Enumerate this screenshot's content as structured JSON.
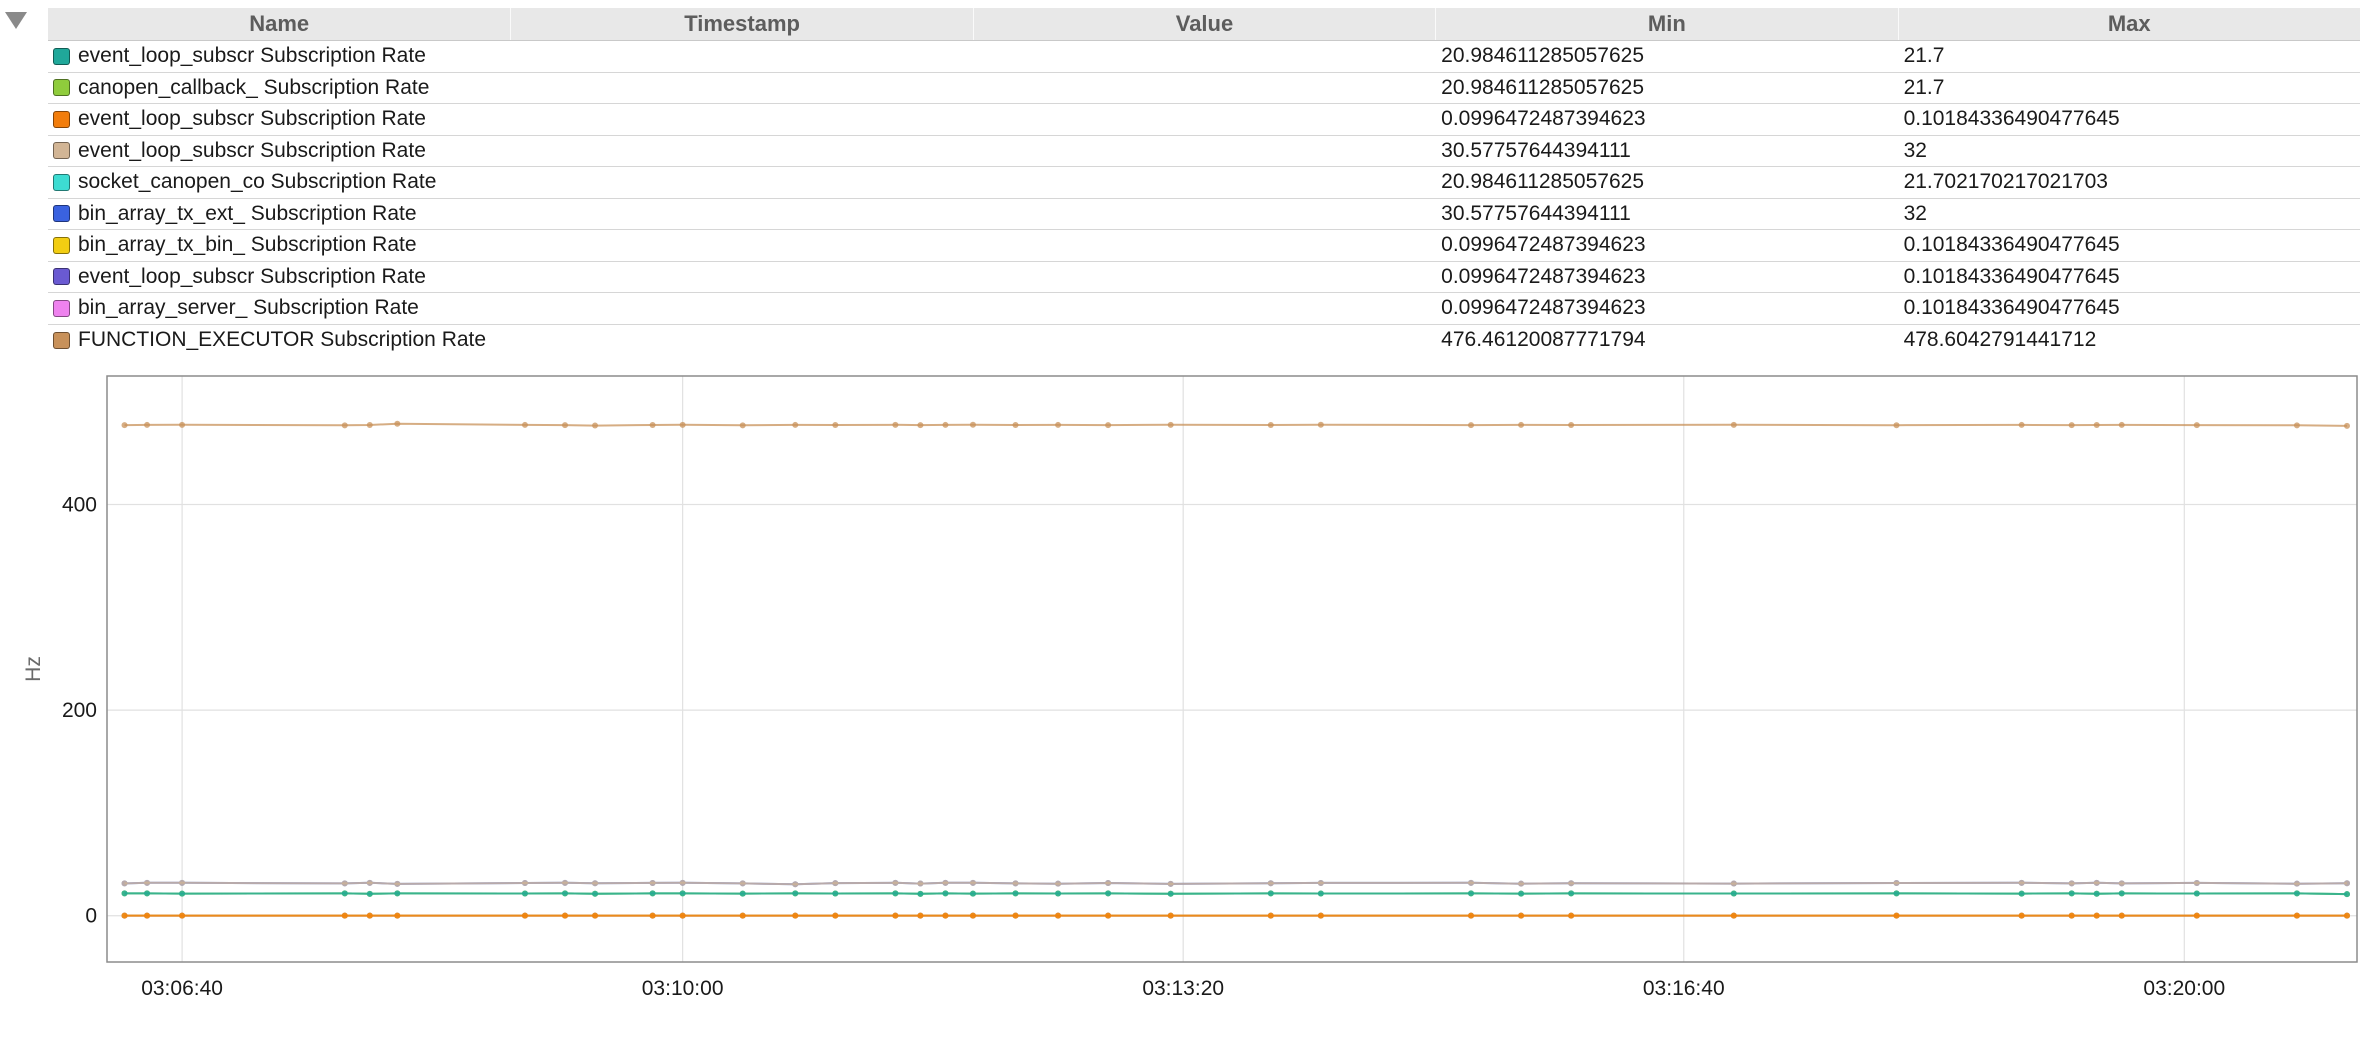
{
  "table": {
    "columns": [
      "Name",
      "Timestamp",
      "Value",
      "Min",
      "Max"
    ],
    "rows": [
      {
        "name": "event_loop_subscr Subscription Rate",
        "color": "#20a89a",
        "timestamp": "",
        "value": "",
        "min": "20.984611285057625",
        "max": "21.7"
      },
      {
        "name": "canopen_callback_ Subscription Rate",
        "color": "#8fcc3c",
        "timestamp": "",
        "value": "",
        "min": "20.984611285057625",
        "max": "21.7"
      },
      {
        "name": "event_loop_subscr Subscription Rate",
        "color": "#f27d0c",
        "timestamp": "",
        "value": "",
        "min": "0.0996472487394623",
        "max": "0.10184336490477645"
      },
      {
        "name": "event_loop_subscr Subscription Rate",
        "color": "#d2b595",
        "timestamp": "",
        "value": "",
        "min": "30.57757644394111",
        "max": "32"
      },
      {
        "name": "socket_canopen_co Subscription Rate",
        "color": "#3ddcd2",
        "timestamp": "",
        "value": "",
        "min": "20.984611285057625",
        "max": "21.702170217021703"
      },
      {
        "name": "bin_array_tx_ext_ Subscription Rate",
        "color": "#3a62e0",
        "timestamp": "",
        "value": "",
        "min": "30.57757644394111",
        "max": "32"
      },
      {
        "name": "bin_array_tx_bin_ Subscription Rate",
        "color": "#f2cd12",
        "timestamp": "",
        "value": "",
        "min": "0.0996472487394623",
        "max": "0.10184336490477645"
      },
      {
        "name": "event_loop_subscr Subscription Rate",
        "color": "#6a5ad2",
        "timestamp": "",
        "value": "",
        "min": "0.0996472487394623",
        "max": "0.10184336490477645"
      },
      {
        "name": "bin_array_server_ Subscription Rate",
        "color": "#ee82ee",
        "timestamp": "",
        "value": "",
        "min": "0.0996472487394623",
        "max": "0.10184336490477645"
      },
      {
        "name": "FUNCTION_EXECUTOR Subscription Rate",
        "color": "#c8915a",
        "timestamp": "",
        "value": "",
        "min": "476.46120087771794",
        "max": "478.6042791441712"
      }
    ]
  },
  "chart_data": {
    "type": "line",
    "ylabel": "Hz",
    "xlabel": "",
    "ylim": [
      -45,
      525
    ],
    "yticks": [
      0,
      200,
      400
    ],
    "xlim": [
      "03:06:10",
      "03:21:09"
    ],
    "xticks": [
      "03:06:40",
      "03:10:00",
      "03:13:20",
      "03:16:40",
      "03:20:00"
    ],
    "grid": true,
    "x": [
      "03:06:17",
      "03:06:26",
      "03:06:40",
      "03:07:45",
      "03:07:55",
      "03:08:06",
      "03:08:57",
      "03:09:13",
      "03:09:25",
      "03:09:48",
      "03:10:00",
      "03:10:24",
      "03:10:45",
      "03:11:01",
      "03:11:25",
      "03:11:35",
      "03:11:45",
      "03:11:56",
      "03:12:13",
      "03:12:30",
      "03:12:50",
      "03:13:15",
      "03:13:55",
      "03:14:15",
      "03:15:15",
      "03:15:35",
      "03:15:55",
      "03:17:00",
      "03:18:05",
      "03:18:55",
      "03:19:15",
      "03:19:25",
      "03:19:35",
      "03:20:05",
      "03:20:45",
      "03:21:05"
    ],
    "series": [
      {
        "name": "event_loop_subscr Subscription Rate",
        "color": "#20a89a",
        "values": [
          21.7,
          21.7,
          21.5,
          21.7,
          21.3,
          21.7,
          21.6,
          21.7,
          21.4,
          21.7,
          21.7,
          21.5,
          21.7,
          21.6,
          21.7,
          21.3,
          21.7,
          21.5,
          21.7,
          21.6,
          21.7,
          21.4,
          21.7,
          21.6,
          21.7,
          21.5,
          21.7,
          21.6,
          21.7,
          21.5,
          21.7,
          21.4,
          21.7,
          21.6,
          21.7,
          21.0
        ]
      },
      {
        "name": "canopen_callback_ Subscription Rate",
        "color": "#8fcc3c",
        "values": [
          21.7,
          21.7,
          21.5,
          21.7,
          21.3,
          21.7,
          21.6,
          21.7,
          21.4,
          21.7,
          21.7,
          21.5,
          21.7,
          21.6,
          21.7,
          21.3,
          21.7,
          21.5,
          21.7,
          21.6,
          21.7,
          21.4,
          21.7,
          21.6,
          21.7,
          21.5,
          21.7,
          21.6,
          21.7,
          21.5,
          21.7,
          21.4,
          21.7,
          21.6,
          21.7,
          21.0
        ]
      },
      {
        "name": "event_loop_subscr Subscription Rate",
        "color": "#f27d0c",
        "values": [
          0.1,
          0.1,
          0.1,
          0.1,
          0.1,
          0.1,
          0.1,
          0.1,
          0.1,
          0.1,
          0.1,
          0.1,
          0.1,
          0.1,
          0.1,
          0.1,
          0.1,
          0.1,
          0.1,
          0.1,
          0.1,
          0.1,
          0.1,
          0.1,
          0.1,
          0.1,
          0.1,
          0.1,
          0.1,
          0.1,
          0.1,
          0.1,
          0.1,
          0.1,
          0.1,
          0.1
        ]
      },
      {
        "name": "event_loop_subscr Subscription Rate",
        "color": "#d2b595",
        "values": [
          31.5,
          32,
          32,
          31.5,
          32,
          31,
          31.8,
          32,
          31.6,
          31.9,
          32,
          31.5,
          30.6,
          31.7,
          32,
          31.3,
          32,
          32,
          31.5,
          31.2,
          31.8,
          31,
          31.6,
          31.9,
          32,
          31.2,
          31.6,
          31.3,
          31.8,
          32,
          31.5,
          32,
          31.5,
          31.9,
          31.2,
          31.6
        ]
      },
      {
        "name": "socket_canopen_co Subscription Rate",
        "color": "#3ddcd2",
        "values": [
          21.7,
          21.7,
          21.5,
          21.7,
          21.3,
          21.7,
          21.6,
          21.7,
          21.4,
          21.7,
          21.7,
          21.5,
          21.7,
          21.6,
          21.7,
          21.3,
          21.7,
          21.5,
          21.7,
          21.6,
          21.7,
          21.4,
          21.7,
          21.6,
          21.7,
          21.5,
          21.7,
          21.6,
          21.7,
          21.5,
          21.7,
          21.4,
          21.7,
          21.6,
          21.7,
          21.0
        ]
      },
      {
        "name": "bin_array_tx_ext_ Subscription Rate",
        "color": "#3a62e0",
        "values": [
          31.5,
          32,
          32,
          31.5,
          32,
          31,
          31.8,
          32,
          31.6,
          31.9,
          32,
          31.5,
          30.6,
          31.7,
          32,
          31.3,
          32,
          32,
          31.5,
          31.2,
          31.8,
          31,
          31.6,
          31.9,
          32,
          31.2,
          31.6,
          31.3,
          31.8,
          32,
          31.5,
          32,
          31.5,
          31.9,
          31.2,
          31.6
        ]
      },
      {
        "name": "bin_array_tx_bin_ Subscription Rate",
        "color": "#f2cd12",
        "values": [
          0.1,
          0.1,
          0.1,
          0.1,
          0.1,
          0.1,
          0.1,
          0.1,
          0.1,
          0.1,
          0.1,
          0.1,
          0.1,
          0.1,
          0.1,
          0.1,
          0.1,
          0.1,
          0.1,
          0.1,
          0.1,
          0.1,
          0.1,
          0.1,
          0.1,
          0.1,
          0.1,
          0.1,
          0.1,
          0.1,
          0.1,
          0.1,
          0.1,
          0.1,
          0.1,
          0.1
        ]
      },
      {
        "name": "event_loop_subscr Subscription Rate",
        "color": "#6a5ad2",
        "values": [
          0.1,
          0.1,
          0.1,
          0.1,
          0.1,
          0.1,
          0.1,
          0.1,
          0.1,
          0.1,
          0.1,
          0.1,
          0.1,
          0.1,
          0.1,
          0.1,
          0.1,
          0.1,
          0.1,
          0.1,
          0.1,
          0.1,
          0.1,
          0.1,
          0.1,
          0.1,
          0.1,
          0.1,
          0.1,
          0.1,
          0.1,
          0.1,
          0.1,
          0.1,
          0.1,
          0.1
        ]
      },
      {
        "name": "bin_array_server_ Subscription Rate",
        "color": "#ee82ee",
        "values": [
          0.1,
          0.1,
          0.1,
          0.1,
          0.1,
          0.1,
          0.1,
          0.1,
          0.1,
          0.1,
          0.1,
          0.1,
          0.1,
          0.1,
          0.1,
          0.1,
          0.1,
          0.1,
          0.1,
          0.1,
          0.1,
          0.1,
          0.1,
          0.1,
          0.1,
          0.1,
          0.1,
          0.1,
          0.1,
          0.1,
          0.1,
          0.1,
          0.1,
          0.1,
          0.1,
          0.1
        ]
      },
      {
        "name": "FUNCTION_EXECUTOR Subscription Rate",
        "color": "#c8915a",
        "values": [
          477.2,
          477.4,
          477.5,
          477.0,
          477.3,
          478.6,
          477.4,
          477.2,
          476.8,
          477.3,
          477.5,
          477.0,
          477.4,
          477.3,
          477.5,
          477.2,
          477.4,
          477.6,
          477.3,
          477.4,
          477.2,
          477.5,
          477.3,
          477.6,
          477.2,
          477.4,
          477.3,
          477.5,
          477.1,
          477.4,
          477.2,
          477.3,
          477.4,
          477.2,
          477.0,
          476.5
        ]
      }
    ]
  }
}
